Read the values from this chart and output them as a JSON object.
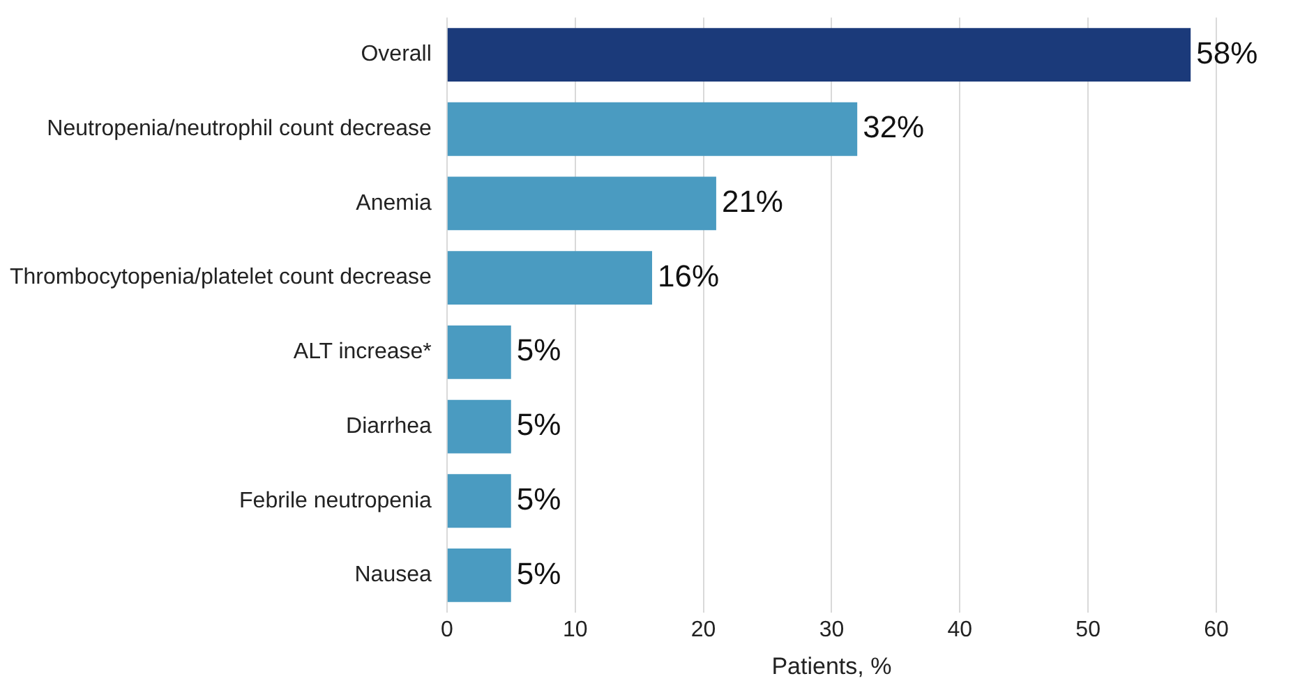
{
  "chart_data": {
    "type": "bar",
    "orientation": "horizontal",
    "xlabel": "Patients, %",
    "categories": [
      "Overall",
      "Neutropenia/neutrophil count decrease",
      "Anemia",
      "Thrombocytopenia/platelet count decrease",
      "ALT increase*",
      "Diarrhea",
      "Febrile neutropenia",
      "Nausea"
    ],
    "values": [
      58,
      32,
      21,
      16,
      5,
      5,
      5,
      5
    ],
    "colors": [
      "#1b3a7a",
      "#4a9bc1",
      "#4a9bc1",
      "#4a9bc1",
      "#4a9bc1",
      "#4a9bc1",
      "#4a9bc1",
      "#4a9bc1"
    ],
    "value_labels": [
      "58%",
      "32%",
      "21%",
      "16%",
      "5%",
      "5%",
      "5%",
      "5%"
    ],
    "xlim": [
      0,
      60
    ],
    "xticks": [
      0,
      10,
      20,
      30,
      40,
      50,
      60
    ],
    "grid": "x"
  }
}
